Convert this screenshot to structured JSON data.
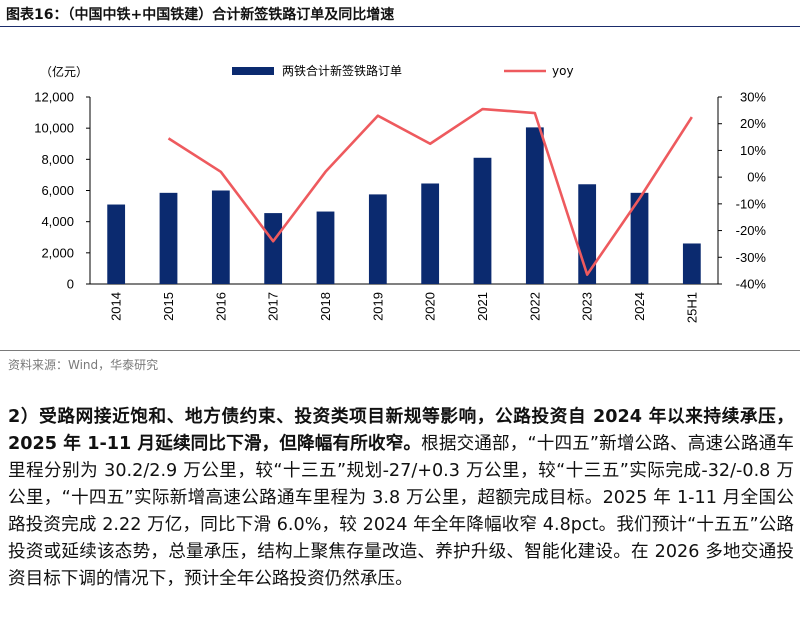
{
  "figure": {
    "title": "图表16：（中国中铁+中国铁建）合计新签铁路订单及同比增速",
    "source": "资料来源：Wind，华泰研究"
  },
  "chart_data": {
    "type": "bar+line",
    "categories": [
      "2014",
      "2015",
      "2016",
      "2017",
      "2018",
      "2019",
      "2020",
      "2021",
      "2022",
      "2023",
      "2024",
      "25H1"
    ],
    "y_left_unit": "（亿元）",
    "y_left_lim": [
      0,
      12000
    ],
    "y_left_ticks": [
      "0",
      "2,000",
      "4,000",
      "6,000",
      "8,000",
      "10,000",
      "12,000"
    ],
    "y_right_lim": [
      -40,
      30
    ],
    "y_right_ticks": [
      "-40%",
      "-30%",
      "-20%",
      "-10%",
      "0%",
      "10%",
      "20%",
      "30%"
    ],
    "series": [
      {
        "name": "两铁合计新签铁路订单",
        "type": "bar",
        "axis": "left",
        "color": "#0b2a6f",
        "values": [
          5100,
          5850,
          6000,
          4550,
          4650,
          5750,
          6450,
          8100,
          10050,
          6400,
          5850,
          2600
        ]
      },
      {
        "name": "yoy",
        "type": "line",
        "axis": "right",
        "color": "#ee5a5e",
        "values": [
          null,
          14.5,
          2.0,
          -24.0,
          2.0,
          23.0,
          12.5,
          25.5,
          24.0,
          -36.5,
          -8.0,
          22.5
        ]
      }
    ],
    "legend_position": "top-center",
    "grid": false
  },
  "body": {
    "lead": "2）受路网接近饱和、地方债约束、投资类项目新规等影响，公路投资自 2024 年以来持续承压，2025 年 1-11 月延续同比下滑，但降幅有所收窄。",
    "text": "根据交通部，“十四五”新增公路、高速公路通车里程分别为 30.2/2.9 万公里，较“十三五”规划-27/+0.3 万公里，较“十三五”实际完成-32/-0.8 万公里，“十四五”实际新增高速公路通车里程为 3.8 万公里，超额完成目标。2025 年 1-11 月全国公路投资完成 2.22 万亿，同比下滑 6.0%，较 2024 年全年降幅收窄 4.8pct。我们预计“十五五”公路投资或延续该态势，总量承压，结构上聚焦存量改造、养护升级、智能化建设。在 2026 多地交通投资目标下调的情况下，预计全年公路投资仍然承压。"
  }
}
